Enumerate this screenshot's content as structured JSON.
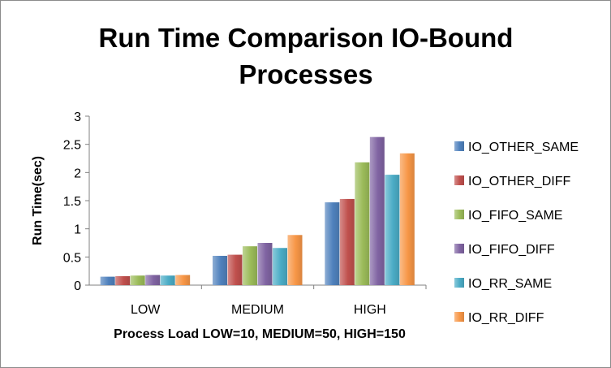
{
  "chart_data": {
    "type": "bar",
    "title_lines": [
      "Run Time Comparison IO-Bound",
      "Processes"
    ],
    "xlabel": "Process Load LOW=10, MEDIUM=50, HIGH=150",
    "ylabel": "Run Time(sec)",
    "ylim": [
      0,
      3
    ],
    "yticks": [
      "0",
      "0.5",
      "1",
      "1.5",
      "2",
      "2.5",
      "3"
    ],
    "grid": false,
    "legend_position": "right",
    "categories": [
      "LOW",
      "MEDIUM",
      "HIGH"
    ],
    "series": [
      {
        "name": "IO_OTHER_SAME",
        "color": "#4f81bd",
        "values": [
          0.15,
          0.52,
          1.47
        ]
      },
      {
        "name": "IO_OTHER_DIFF",
        "color": "#c0504d",
        "values": [
          0.16,
          0.54,
          1.53
        ]
      },
      {
        "name": "IO_FIFO_SAME",
        "color": "#9bbb59",
        "values": [
          0.17,
          0.69,
          2.18
        ]
      },
      {
        "name": "IO_FIFO_DIFF",
        "color": "#8064a2",
        "values": [
          0.18,
          0.75,
          2.63
        ]
      },
      {
        "name": "IO_RR_SAME",
        "color": "#4bacc6",
        "values": [
          0.17,
          0.66,
          1.96
        ]
      },
      {
        "name": "IO_RR_DIFF",
        "color": "#f79646",
        "values": [
          0.18,
          0.89,
          2.34
        ]
      }
    ]
  }
}
